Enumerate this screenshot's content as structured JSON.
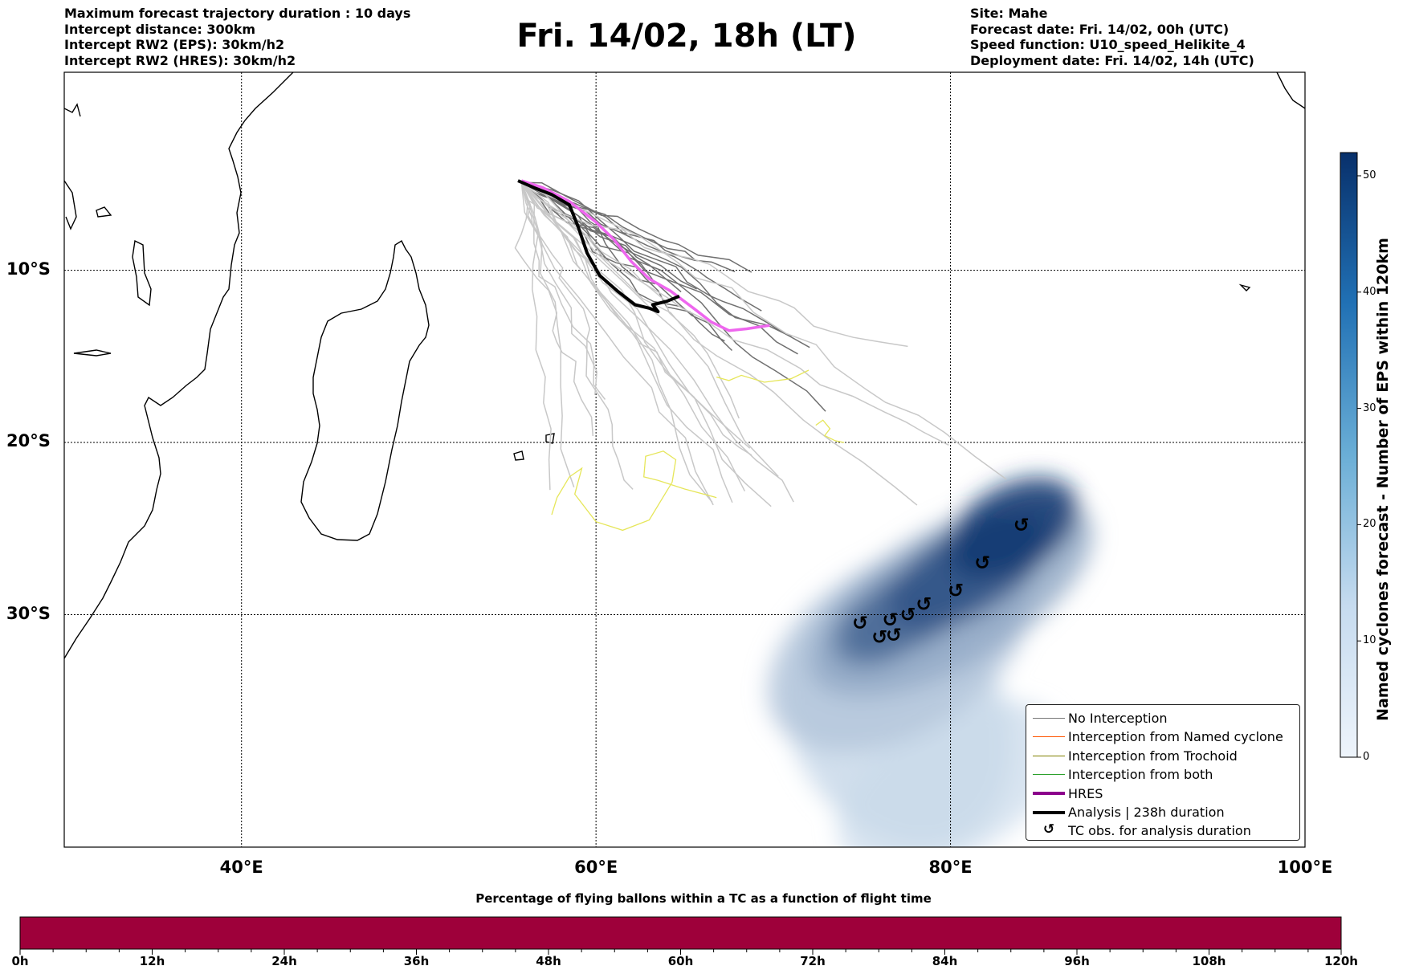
{
  "header": {
    "left": [
      "Maximum forecast trajectory duration : 10 days",
      "Intercept distance: 300km",
      "Intercept RW2 (EPS):  30km/h2",
      "Intercept RW2 (HRES): 30km/h2"
    ],
    "title": "Fri. 14/02, 18h (LT)",
    "right": [
      "Site: Mahe",
      "Forecast date: Fri. 14/02, 00h (UTC)",
      "Speed function: U10_speed_Helikite_4",
      "Deployment date: Fri. 14/02, 14h (UTC)"
    ]
  },
  "map": {
    "lon_range": [
      30,
      100
    ],
    "lat_range": [
      -43.5,
      1.5
    ],
    "lon_ticks": [
      {
        "value": 40,
        "label": "40°E"
      },
      {
        "value": 60,
        "label": "60°E"
      },
      {
        "value": 80,
        "label": "80°E"
      },
      {
        "value": 100,
        "label": "100°E"
      }
    ],
    "lat_ticks": [
      {
        "value": -10,
        "label": "10°S"
      },
      {
        "value": -20,
        "label": "20°S"
      },
      {
        "value": -30,
        "label": "30°S"
      }
    ],
    "colors": {
      "eps_track": "#c8c8c8",
      "eps_track_dark": "#707070",
      "hres": "#ee66ee",
      "analysis": "#000000",
      "trochoid": "#e6e65a",
      "density": "#08519c"
    },
    "hres_track": [
      [
        55.8,
        -4.8
      ],
      [
        57,
        -5.2
      ],
      [
        58.5,
        -6
      ],
      [
        60,
        -7.2
      ],
      [
        61,
        -8.2
      ],
      [
        62,
        -9.5
      ],
      [
        63,
        -10.5
      ],
      [
        64.2,
        -11.2
      ],
      [
        65.5,
        -12.2
      ],
      [
        66.5,
        -13
      ],
      [
        67.5,
        -13.5
      ],
      [
        68.5,
        -13.4
      ],
      [
        69.8,
        -13.2
      ]
    ],
    "analysis_track": [
      [
        55.6,
        -4.8
      ],
      [
        56.5,
        -5.2
      ],
      [
        57.5,
        -5.6
      ],
      [
        58.5,
        -6.2
      ],
      [
        59,
        -7.5
      ],
      [
        59.5,
        -9
      ],
      [
        60.2,
        -10.3
      ],
      [
        61.2,
        -11.2
      ],
      [
        62.2,
        -12
      ],
      [
        63,
        -12.2
      ],
      [
        63.5,
        -12.4
      ],
      [
        63.2,
        -12
      ],
      [
        64,
        -11.8
      ],
      [
        64.7,
        -11.5
      ]
    ],
    "tc_obs": [
      [
        84,
        -24.8
      ],
      [
        81.8,
        -27
      ],
      [
        80.3,
        -28.6
      ],
      [
        78.5,
        -29.4
      ],
      [
        77.6,
        -30
      ],
      [
        76.6,
        -30.3
      ],
      [
        74.9,
        -30.5
      ],
      [
        76.8,
        -31.2
      ],
      [
        76,
        -31.3
      ]
    ],
    "density_blobs": [
      {
        "lon": 83.5,
        "lat": -25,
        "rx": 4,
        "ry": 2.5,
        "level": 50
      },
      {
        "lon": 81,
        "lat": -27.5,
        "rx": 5,
        "ry": 2.5,
        "level": 42
      },
      {
        "lon": 78,
        "lat": -29.5,
        "rx": 4.5,
        "ry": 2.2,
        "level": 36
      },
      {
        "lon": 76,
        "lat": -30.8,
        "rx": 3,
        "ry": 2,
        "level": 30
      },
      {
        "lon": 80,
        "lat": -29,
        "rx": 9,
        "ry": 4,
        "level": 18
      },
      {
        "lon": 77,
        "lat": -32,
        "rx": 8,
        "ry": 5,
        "level": 10
      },
      {
        "lon": 77,
        "lat": -36,
        "rx": 6,
        "ry": 8,
        "level": 5
      },
      {
        "lon": 80,
        "lat": -40,
        "rx": 7,
        "ry": 4,
        "level": 3
      }
    ]
  },
  "colorbar": {
    "label": "Named cyclones forecast - Number of EPS within 120km",
    "min": 0,
    "max": 52,
    "ticks": [
      0,
      10,
      20,
      30,
      40,
      50
    ]
  },
  "legend": [
    {
      "label": "No Interception",
      "type": "line",
      "color": "#777777",
      "width": 1.5
    },
    {
      "label": "Interception from Named cyclone",
      "type": "line",
      "color": "#ff5500",
      "width": 1.5
    },
    {
      "label": "Interception from Trochoid",
      "type": "line",
      "color": "#808000",
      "width": 1.5
    },
    {
      "label": "Interception from both",
      "type": "line",
      "color": "#2ca02c",
      "width": 1.5
    },
    {
      "label": "HRES",
      "type": "line",
      "color": "#8b008b",
      "width": 4
    },
    {
      "label": "Analysis | 238h duration",
      "type": "line",
      "color": "#000000",
      "width": 4
    },
    {
      "label": "TC obs. for analysis duration",
      "type": "symbol",
      "symbol": "↺",
      "color": "#000000"
    }
  ],
  "flight_bar": {
    "title": "Percentage of flying ballons within a TC as a function of flight time",
    "color": "#9e003a",
    "percent_in_tc": 0,
    "max_hours": 120,
    "ticks": [
      "0h",
      "12h",
      "24h",
      "36h",
      "48h",
      "60h",
      "72h",
      "84h",
      "96h",
      "108h",
      "120h"
    ]
  }
}
